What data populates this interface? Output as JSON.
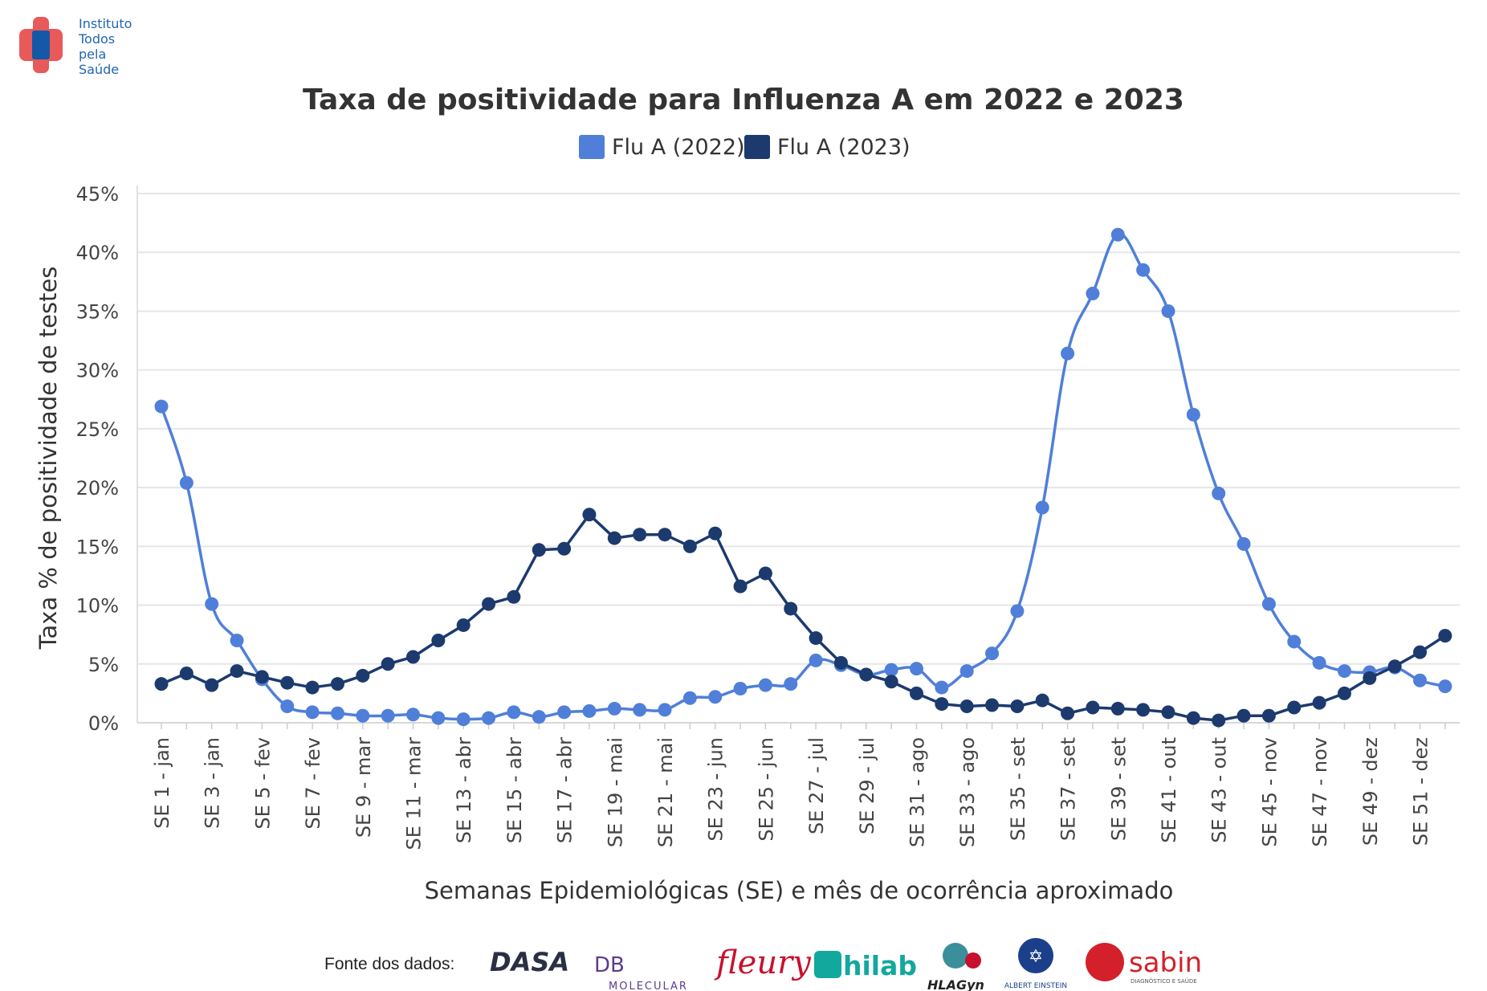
{
  "logo": {
    "name": "Instituto Todos pela Saúde",
    "lines": [
      "Instituto",
      "Todos",
      "pela",
      "Saúde"
    ]
  },
  "legend": {
    "items": [
      {
        "label": "Flu A (2022)",
        "color": "#4f7fd9"
      },
      {
        "label": "Flu A (2023)",
        "color": "#1c3a6e"
      }
    ]
  },
  "source": {
    "label": "Fonte dos dados:",
    "partners": [
      "DASA",
      "DB Molecular",
      "fleury",
      "hilab",
      "HLAGyn",
      "Albert Einstein",
      "sabin"
    ]
  },
  "chart_data": {
    "type": "line",
    "title": "Taxa de positividade para Influenza A em 2022 e 2023",
    "xlabel": "Semanas Epidemiológicas (SE) e mês de ocorrência aproximado",
    "ylabel": "Taxa % de positividade de testes",
    "ylim": [
      0,
      45
    ],
    "yticks": [
      "0%",
      "5%",
      "10%",
      "15%",
      "20%",
      "25%",
      "30%",
      "35%",
      "40%",
      "45%"
    ],
    "grid": true,
    "legend_position": "top-center",
    "x": [
      "SE 1 - jan",
      "SE 2 - jan",
      "SE 3 - jan",
      "SE 4 - jan",
      "SE 5 - fev",
      "SE 6 - fev",
      "SE 7 - fev",
      "SE 8 - fev",
      "SE 9 - mar",
      "SE 10 - mar",
      "SE 11 - mar",
      "SE 12 - mar",
      "SE 13 - abr",
      "SE 14 - abr",
      "SE 15 - abr",
      "SE 16 - abr",
      "SE 17 - abr",
      "SE 18 - mai",
      "SE 19 - mai",
      "SE 20 - mai",
      "SE 21 - mai",
      "SE 22 - jun",
      "SE 23 - jun",
      "SE 24 - jun",
      "SE 25 - jun",
      "SE 26 - jun",
      "SE 27 - jul",
      "SE 28 - jul",
      "SE 29 - jul",
      "SE 30 - jul",
      "SE 31 - ago",
      "SE 32 - ago",
      "SE 33 - ago",
      "SE 34 - ago",
      "SE 35 - set",
      "SE 36 - set",
      "SE 37 - set",
      "SE 38 - set",
      "SE 39 - set",
      "SE 40 - out",
      "SE 41 - out",
      "SE 42 - out",
      "SE 43 - out",
      "SE 44 - nov",
      "SE 45 - nov",
      "SE 46 - nov",
      "SE 47 - nov",
      "SE 48 - dez",
      "SE 49 - dez",
      "SE 50 - dez",
      "SE 51 - dez",
      "SE 52 - dez"
    ],
    "tick_labels": [
      "SE 1 - jan",
      "SE 3 - jan",
      "SE 5 - fev",
      "SE 7 - fev",
      "SE 9 - mar",
      "SE 11 - mar",
      "SE 13 - abr",
      "SE 15 - abr",
      "SE 17 - abr",
      "SE 19 - mai",
      "SE 21 - mai",
      "SE 23 - jun",
      "SE 25 - jun",
      "SE 27 - jul",
      "SE 29 - jul",
      "SE 31 - ago",
      "SE 33 - ago",
      "SE 35 - set",
      "SE 37 - set",
      "SE 39 - set",
      "SE 41 - out",
      "SE 43 - out",
      "SE 45 - nov",
      "SE 47 - nov",
      "SE 49 - dez",
      "SE 51 - dez"
    ],
    "series": [
      {
        "name": "Flu A (2022)",
        "color": "#4f7fd9",
        "smooth": true,
        "values": [
          26.9,
          20.4,
          10.1,
          7.0,
          3.7,
          1.4,
          0.9,
          0.8,
          0.6,
          0.6,
          0.7,
          0.4,
          0.3,
          0.4,
          0.9,
          0.5,
          0.9,
          1.0,
          1.2,
          1.1,
          1.1,
          2.1,
          2.2,
          2.9,
          3.2,
          3.3,
          5.3,
          4.9,
          4.1,
          4.5,
          4.6,
          3.0,
          4.4,
          5.9,
          9.5,
          18.3,
          31.4,
          36.5,
          41.5,
          38.5,
          35.0,
          26.2,
          19.5,
          15.2,
          10.1,
          6.9,
          5.1,
          4.4,
          4.3,
          4.7,
          3.6,
          3.1
        ]
      },
      {
        "name": "Flu A (2023)",
        "color": "#1c3a6e",
        "smooth": false,
        "values": [
          3.3,
          4.2,
          3.2,
          4.4,
          3.9,
          3.4,
          3.0,
          3.3,
          4.0,
          5.0,
          5.6,
          7.0,
          8.3,
          10.1,
          10.7,
          14.7,
          14.8,
          17.7,
          15.7,
          16.0,
          16.0,
          15.0,
          16.1,
          11.6,
          12.7,
          9.7,
          7.2,
          5.1,
          4.1,
          3.5,
          2.5,
          1.6,
          1.4,
          1.5,
          1.4,
          1.9,
          0.8,
          1.3,
          1.2,
          1.1,
          0.9,
          0.4,
          0.2,
          0.6,
          0.6,
          1.3,
          1.7,
          2.5,
          3.8,
          4.8,
          6.0,
          7.4
        ]
      }
    ]
  }
}
